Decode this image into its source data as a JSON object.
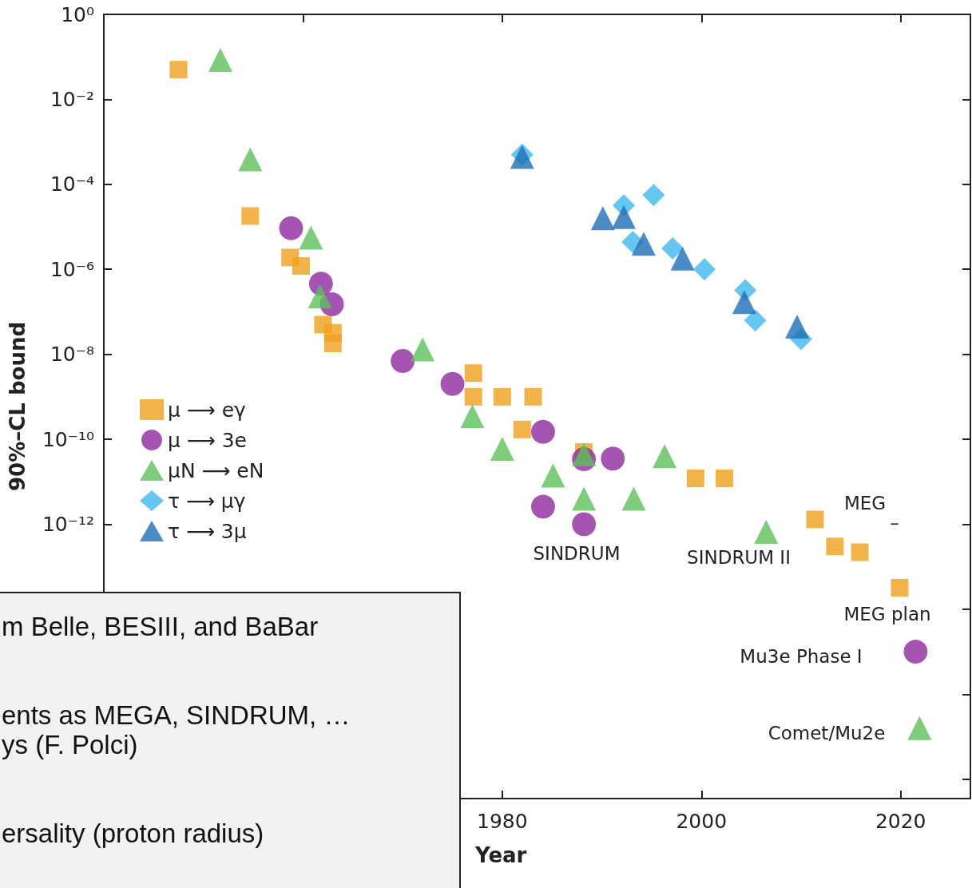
{
  "chart_data": {
    "type": "scatter",
    "xlabel": "Year",
    "ylabel": "90%–CL bound",
    "xlim": [
      1940,
      2027
    ],
    "xticks": [
      {
        "value": 1960,
        "label": null
      },
      1980,
      2000,
      2020
    ],
    "ylim": [
      3.5e-19,
      1
    ],
    "yticks": [
      {
        "value": 1,
        "label": "10⁰"
      },
      {
        "value": 0.01,
        "label": "10⁻²"
      },
      {
        "value": 0.0001,
        "label": "10⁻⁴"
      },
      {
        "value": 1e-06,
        "label": "10⁻⁶"
      },
      {
        "value": 1e-08,
        "label": "10⁻⁸"
      },
      {
        "value": 1e-10,
        "label": "10⁻¹⁰"
      },
      {
        "value": 1e-12,
        "label": "10⁻¹²"
      },
      {
        "value": 1e-14,
        "label": null
      },
      {
        "value": 1e-16,
        "label": null
      },
      {
        "value": 1e-18,
        "label": null
      }
    ],
    "log": "y",
    "grid": false,
    "legend": "left",
    "series": [
      {
        "name": "μ ⟶ eγ",
        "color": "#f0a01e",
        "marker": "square",
        "x": [
          1947.5,
          1954.7,
          1958.7,
          1959.8,
          1962.0,
          1963.0,
          1963.0,
          1977.1,
          1977.1,
          1980.0,
          1983.1,
          1982.0,
          1988.2,
          1999.4,
          2002.3,
          2011.4,
          2013.4,
          2015.9
        ],
        "values": [
          0.05,
          1.8e-05,
          1.9e-06,
          1.2e-06,
          5e-08,
          3.2e-08,
          1.8e-08,
          3.6e-09,
          1e-09,
          1e-09,
          1e-09,
          1.7e-10,
          5e-11,
          1.2e-11,
          1.2e-11,
          1.3e-12,
          3e-13,
          2.2e-13
        ]
      },
      {
        "name": "μ ⟶ 3e",
        "color": "#8e2a9e",
        "marker": "circle",
        "x": [
          1958.8,
          1961.8,
          1962.9,
          1970.0,
          1975.0,
          1984.1,
          1988.2,
          1991.1,
          1984.1,
          1988.2
        ],
        "values": [
          9.3e-06,
          4.6e-07,
          1.5e-07,
          7e-09,
          2e-09,
          1.5e-10,
          3.4e-11,
          3.5e-11,
          2.6e-12,
          1e-12
        ]
      },
      {
        "name": "μN ⟶ eN",
        "color": "#5cc05c",
        "marker": "triangle",
        "x": [
          1951.7,
          1954.7,
          1960.8,
          1961.7,
          1972.0,
          1977.0,
          1980.0,
          1985.1,
          1988.2,
          1988.2,
          1993.2,
          1996.3,
          2006.5
        ],
        "values": [
          0.085,
          0.00039,
          5.6e-06,
          2.3e-07,
          1.3e-08,
          3.5e-10,
          6e-11,
          1.4e-11,
          4.4e-11,
          4e-12,
          4e-12,
          4e-11,
          6.6e-13
        ]
      },
      {
        "name": "τ ⟶ μγ",
        "color": "#3db8ee",
        "marker": "diamond",
        "x": [
          1982.0,
          1992.2,
          1995.2,
          1993.1,
          1997.1,
          2000.3,
          2004.4,
          2005.4,
          2010.0
        ],
        "values": [
          0.0005,
          3.2e-05,
          5.6e-05,
          4.4e-06,
          3.1e-06,
          1e-06,
          3.2e-07,
          6.3e-08,
          2.3e-08
        ]
      },
      {
        "name": "τ ⟶ 3μ",
        "color": "#1f6fb8",
        "marker": "triangle",
        "x": [
          1982.0,
          1990.1,
          1992.2,
          1994.2,
          1998.1,
          2004.3,
          2009.6
        ],
        "values": [
          0.00044,
          1.6e-05,
          1.7e-05,
          4e-06,
          1.8e-06,
          1.7e-07,
          4.5e-08
        ]
      },
      {
        "color": "#f0a01e",
        "marker": "square",
        "x": [
          2019.9
        ],
        "values": [
          3.2e-14
        ]
      },
      {
        "color": "#8e2a9e",
        "marker": "circle",
        "x": [
          2021.5
        ],
        "values": [
          1e-15
        ]
      },
      {
        "color": "#5cc05c",
        "marker": "triangle",
        "x": [
          2021.9
        ],
        "values": [
          1.6e-17
        ]
      }
    ],
    "annotations": [
      "SINDRUM",
      "SINDRUM II",
      "MEG",
      "–",
      "MEG plan",
      "Mu3e Phase I",
      "Comet/Mu2e",
      "m Belle, BESIII, and BaBar",
      "ents as MEGA, SINDRUM, …",
      "ys (F. Polci)",
      "ersality (proton radius)"
    ]
  }
}
